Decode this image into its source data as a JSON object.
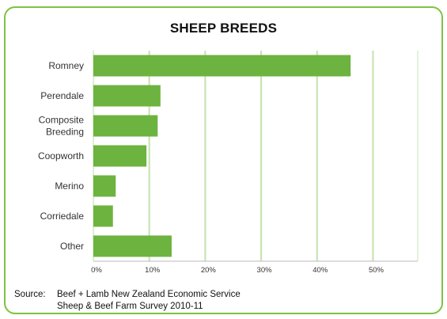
{
  "chart_data": {
    "type": "bar",
    "orientation": "horizontal",
    "title": "SHEEP BREEDS",
    "categories": [
      "Romney",
      "Perendale",
      "Composite Breeding",
      "Coopworth",
      "Merino",
      "Corriedale",
      "Other"
    ],
    "category_lines": [
      [
        "Romney"
      ],
      [
        "Perendale"
      ],
      [
        "Composite",
        "Breeding"
      ],
      [
        "Coopworth"
      ],
      [
        "Merino"
      ],
      [
        "Corriedale"
      ],
      [
        "Other"
      ]
    ],
    "values": [
      46,
      12,
      11.5,
      9.5,
      4,
      3.5,
      14
    ],
    "x_ticks": [
      "0%",
      "10%",
      "20%",
      "30%",
      "40%",
      "50%"
    ],
    "xlim": [
      0,
      58
    ],
    "grid": true,
    "bar_color": "#6db33f",
    "grid_color": "#c9e3b4"
  },
  "frame_color": "#7dc243",
  "source": {
    "label": "Source:",
    "lines": [
      "Beef + Lamb New Zealand Economic Service",
      "Sheep & Beef Farm Survey 2010-11"
    ]
  }
}
